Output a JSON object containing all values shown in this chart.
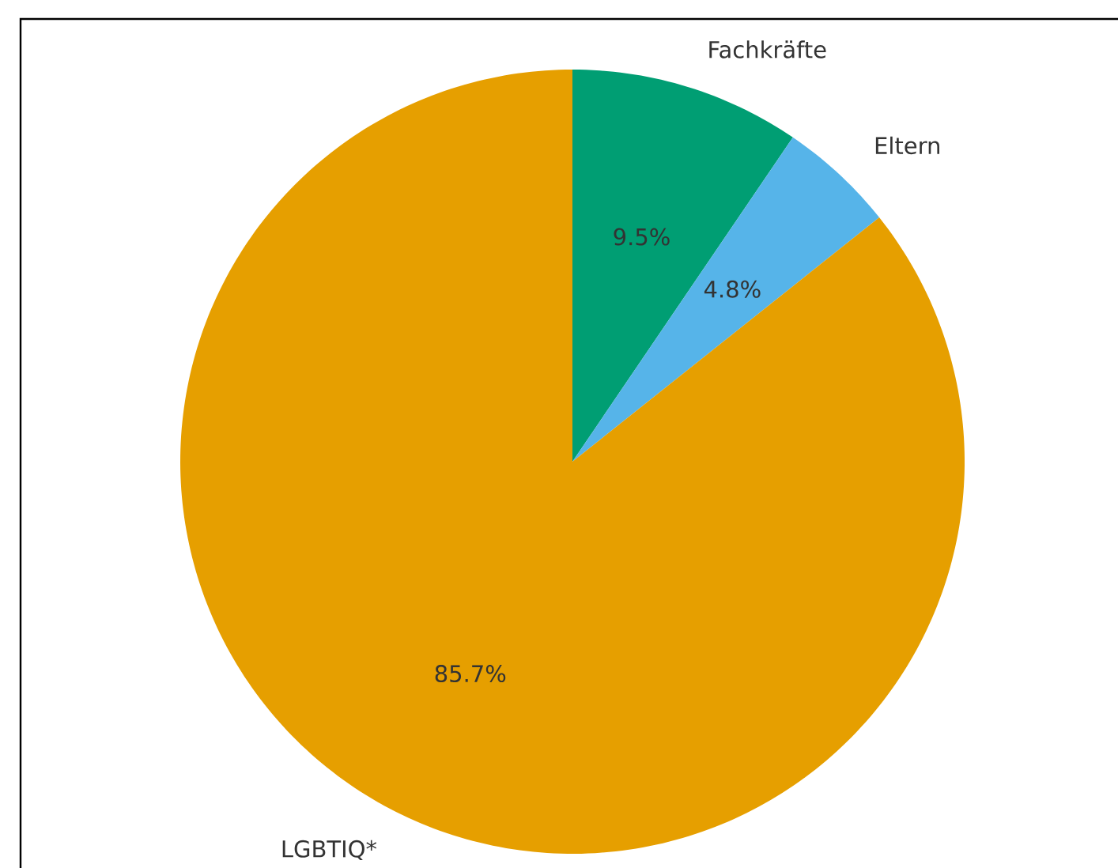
{
  "chart_data": {
    "type": "pie",
    "categories": [
      "Fachkräfte",
      "Eltern",
      "LGBTIQ*"
    ],
    "values": [
      9.5,
      4.8,
      85.7
    ],
    "colors": [
      "#009e73",
      "#56b4e9",
      "#e69f00"
    ],
    "value_labels": [
      "9.5%",
      "4.8%",
      "85.7%"
    ]
  }
}
